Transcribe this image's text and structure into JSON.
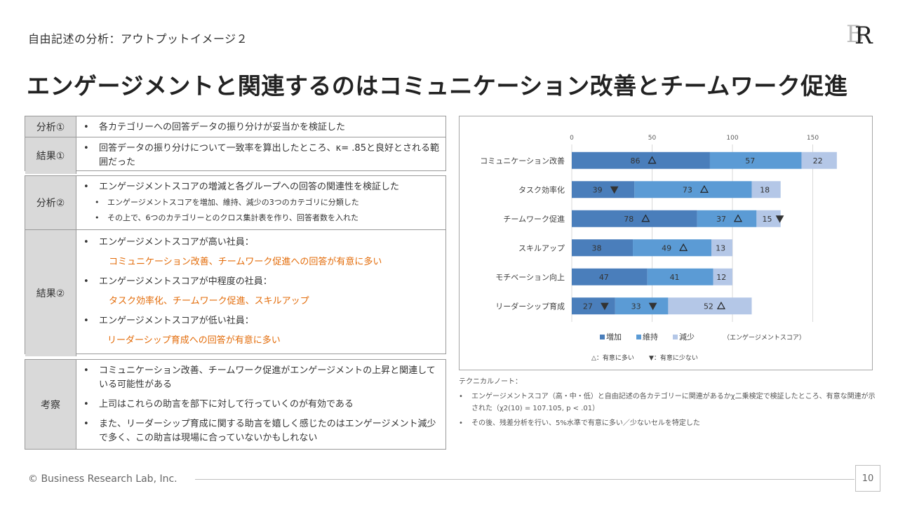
{
  "header": {
    "subtitle": "自由記述の分析：アウトプットイメージ２",
    "headline": "エンゲージメントと関連するのはコミュニケーション改善とチームワーク促進",
    "logo_text": "BR"
  },
  "table": {
    "block1": {
      "analysis_label": "分析①",
      "analysis_text": "各カテゴリーへの回答データの振り分けが妥当かを検証した",
      "result_label": "結果①",
      "result_text": "回答データの振り分けについて一致率を算出したところ、κ= .85と良好とされる範囲だった"
    },
    "block2": {
      "analysis_label": "分析②",
      "analysis_text": "エンゲージメントスコアの増減と各グループへの回答の関連性を検証した",
      "analysis_sub1": "エンゲージメントスコアを増加、維持、減少の3つのカテゴリに分類した",
      "analysis_sub2": "その上で、6つのカテゴリーとのクロス集計表を作り、回答者数を入れた",
      "result_label": "結果②",
      "result_high": "エンゲージメントスコアが高い社員：",
      "result_high_detail": "コミュニケーション改善、チームワーク促進への回答が有意に多い",
      "result_mid": "エンゲージメントスコアが中程度の社員：",
      "result_mid_detail": "タスク効率化、チームワーク促進、スキルアップ",
      "result_low": "エンゲージメントスコアが低い社員：",
      "result_low_detail": "リーダーシップ育成への回答が有意に多い"
    },
    "block3": {
      "label": "考察",
      "item1": "コミュニケーション改善、チームワーク促進がエンゲージメントの上昇と関連している可能性がある",
      "item2": "上司はこれらの助言を部下に対して行っていくのが有効である",
      "item3": "また、リーダーシップ育成に関する助言を嬉しく感じたのはエンゲージメント減少で多く、この助言は現場に合っていないかもしれない"
    },
    "bullet": "•",
    "sub_bullet": "•"
  },
  "chart_data": {
    "type": "bar",
    "orientation": "horizontal",
    "stacked": true,
    "categories": [
      "コミュニケーション改善",
      "タスク効率化",
      "チームワーク促進",
      "スキルアップ",
      "モチベーション向上",
      "リーダーシップ育成"
    ],
    "series": [
      {
        "name": "増加",
        "values": [
          86,
          39,
          78,
          38,
          47,
          27
        ],
        "color": "#4a7ebb"
      },
      {
        "name": "維持",
        "values": [
          57,
          73,
          37,
          49,
          41,
          33
        ],
        "color": "#5b9bd5"
      },
      {
        "name": "減少",
        "values": [
          22,
          18,
          15,
          13,
          12,
          52
        ],
        "color": "#b4c7e7"
      }
    ],
    "markers": [
      {
        "category": 0,
        "series": 0,
        "type": "more"
      },
      {
        "category": 1,
        "series": 0,
        "type": "less"
      },
      {
        "category": 1,
        "series": 1,
        "type": "more"
      },
      {
        "category": 2,
        "series": 0,
        "type": "more"
      },
      {
        "category": 2,
        "series": 1,
        "type": "more"
      },
      {
        "category": 2,
        "series": 2,
        "type": "less"
      },
      {
        "category": 3,
        "series": 1,
        "type": "more"
      },
      {
        "category": 5,
        "series": 0,
        "type": "less"
      },
      {
        "category": 5,
        "series": 1,
        "type": "less"
      },
      {
        "category": 5,
        "series": 2,
        "type": "more"
      }
    ],
    "x_ticks": [
      0,
      50,
      100,
      150
    ],
    "xlim": [
      0,
      175
    ],
    "unit_note": "（エンゲージメントスコア）",
    "marker_legend": {
      "more": "△：有意に多い",
      "less": "▼：有意に少ない"
    },
    "grid": true,
    "legend_position": "bottom"
  },
  "notes": {
    "title": "テクニカルノート：",
    "items": [
      "エンゲージメントスコア（高・中・低）と自由記述の各カテゴリーに関連があるかχ二乗検定で検証したところ、有意な関連が示された（χ2(10) = 107.105, p < .01）",
      "その後、残差分析を行い、5%水準で有意に多い／少ないセルを特定した"
    ]
  },
  "footer": {
    "copyright": "© Business Research Lab, Inc.",
    "page": "10"
  }
}
